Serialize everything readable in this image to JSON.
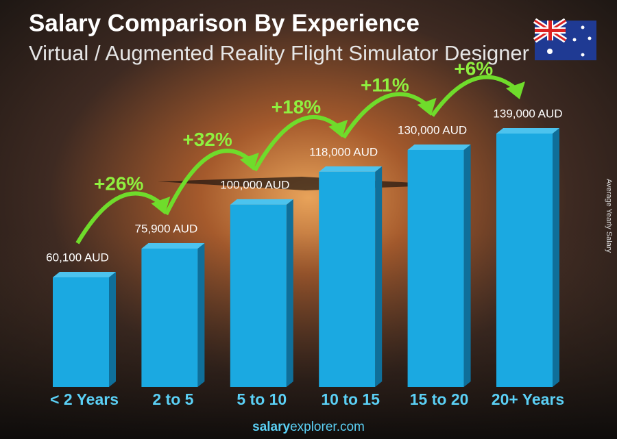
{
  "chart_data": {
    "type": "bar",
    "title": "Salary Comparison By Experience",
    "subtitle": "Virtual / Augmented Reality Flight Simulator Designer",
    "y_axis_label": "Average Yearly Salary",
    "categories": [
      "< 2 Years",
      "2 to 5",
      "5 to 10",
      "10 to 15",
      "15 to 20",
      "20+ Years"
    ],
    "values": [
      60100,
      75900,
      100000,
      118000,
      130000,
      139000
    ],
    "value_labels": [
      "60,100 AUD",
      "75,900 AUD",
      "100,000 AUD",
      "118,000 AUD",
      "130,000 AUD",
      "139,000 AUD"
    ],
    "changes": [
      "+26%",
      "+32%",
      "+18%",
      "+11%",
      "+6%"
    ],
    "color": "#1ba9e1",
    "footer": [
      "salary",
      "explorer",
      ".com"
    ]
  }
}
